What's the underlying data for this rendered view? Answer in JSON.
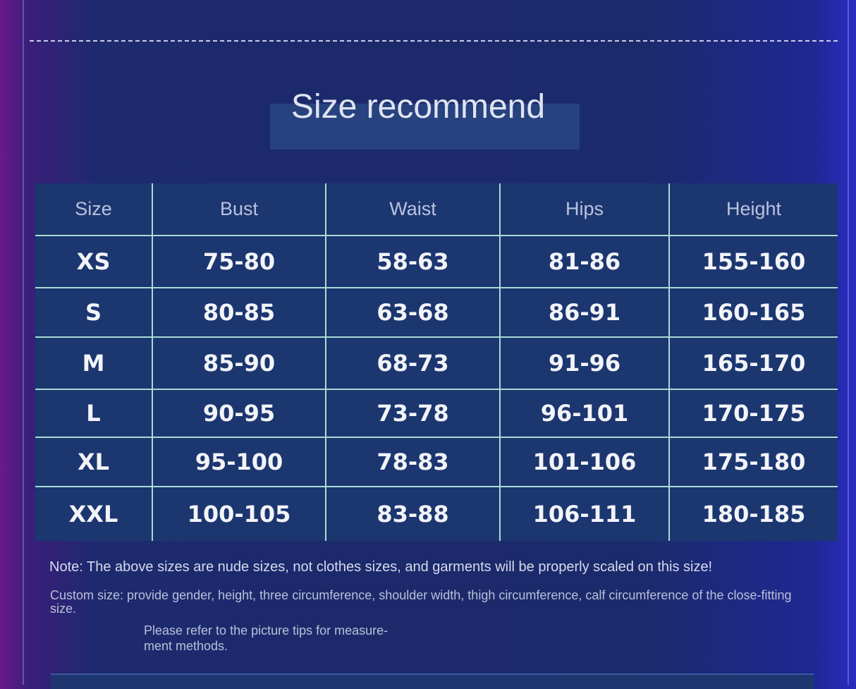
{
  "title": "Size recommend",
  "table": {
    "header": [
      "Size",
      "Bust",
      "Waist",
      "Hips",
      "Height"
    ],
    "rows": [
      [
        "XS",
        "75-80",
        "58-63",
        "81-86",
        "155-160"
      ],
      [
        "S",
        "80-85",
        "63-68",
        "86-91",
        "160-165"
      ],
      [
        "M",
        "85-90",
        "68-73",
        "91-96",
        "165-170"
      ],
      [
        "L",
        "90-95",
        "73-78",
        "96-101",
        "170-175"
      ],
      [
        "XL",
        "95-100",
        "78-83",
        "101-106",
        "175-180"
      ],
      [
        "XXL",
        "100-105",
        "83-88",
        "106-111",
        "180-185"
      ]
    ]
  },
  "notes": {
    "note": "Note: The above sizes are nude sizes, not clothes sizes, and garments will be properly scaled on this size!",
    "custom": "Custom size: provide gender, height, three circumference, shoulder width, thigh circumference, calf circumference of the close-fitting size.",
    "refer": [
      "Please refer to the picture tips for measure-",
      "ment methods."
    ]
  }
}
